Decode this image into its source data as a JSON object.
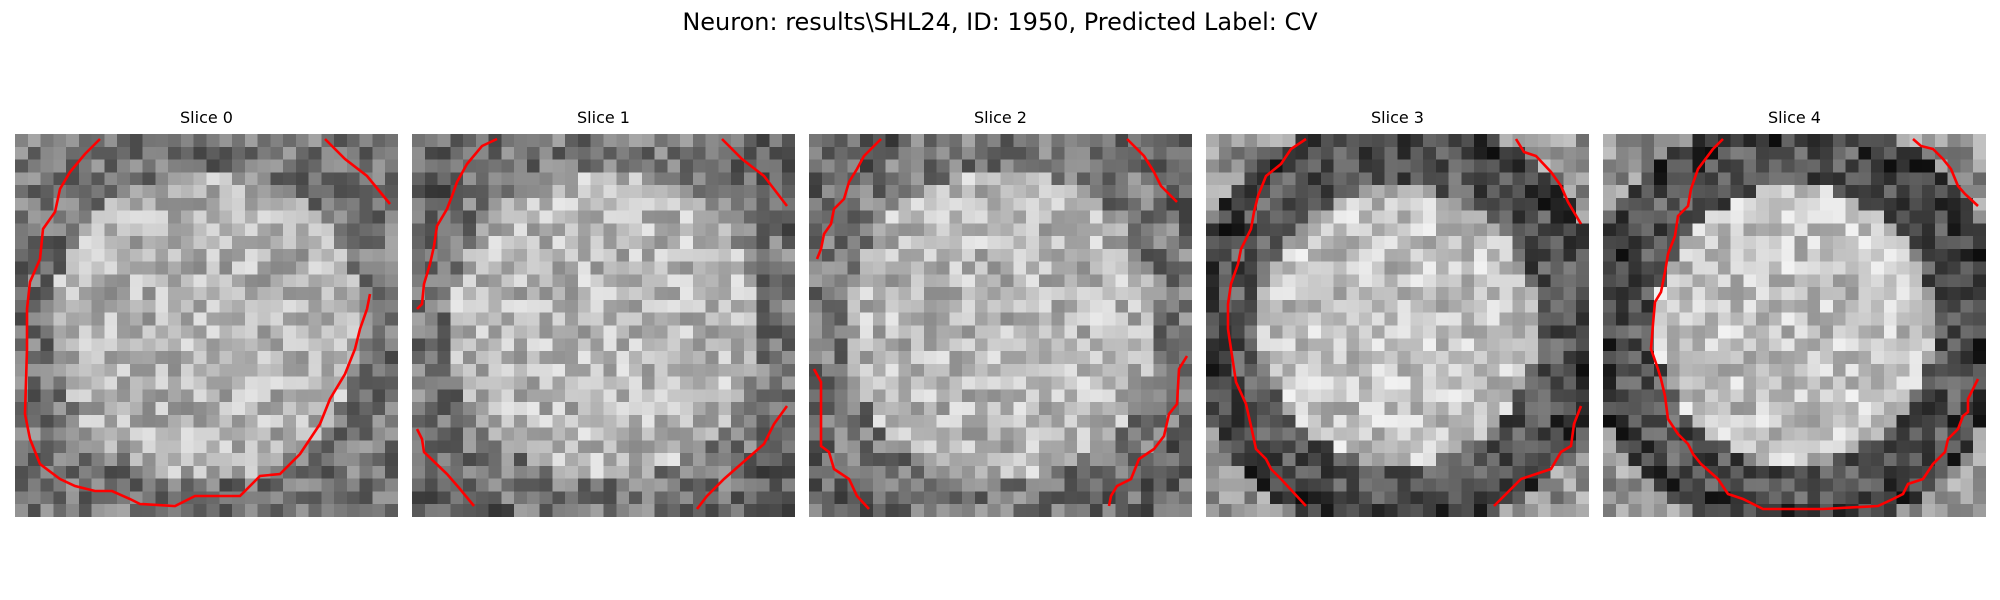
{
  "figure": {
    "title": "Neuron: results\\SHL24, ID: 1950, Predicted Label: CV"
  },
  "style": {
    "contour_color": "#ff0000",
    "colormap": "gray"
  },
  "panels": [
    {
      "label": "Slice 0",
      "kind": "mid"
    },
    {
      "label": "Slice 1",
      "kind": "bright"
    },
    {
      "label": "Slice 2",
      "kind": "bright"
    },
    {
      "label": "Slice 3",
      "kind": "ring"
    },
    {
      "label": "Slice 4",
      "kind": "ring"
    }
  ]
}
